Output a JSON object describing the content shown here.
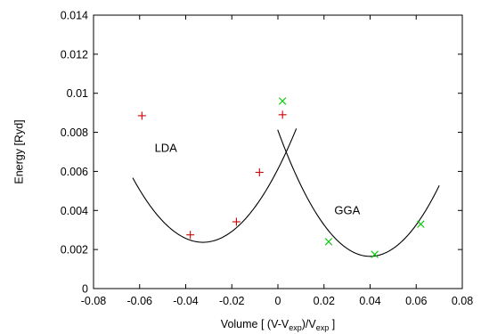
{
  "chart_data": {
    "type": "scatter",
    "xlabel": {
      "prefix": "Volume [  (V-V",
      "sub1": "exp",
      "mid": ")/V",
      "sub2": "exp",
      "suffix": "  ]"
    },
    "ylabel": "Energy [Ryd]",
    "xlim": [
      -0.08,
      0.08
    ],
    "ylim": [
      0,
      0.014
    ],
    "x_ticks": [
      "-0.08",
      "-0.06",
      "-0.04",
      "-0.02",
      "0",
      "0.02",
      "0.04",
      "0.06",
      "0.08"
    ],
    "y_ticks": [
      "0",
      "0.002",
      "0.004",
      "0.006",
      "0.008",
      "0.01",
      "0.012",
      "0.014"
    ],
    "grid": false,
    "legend": "none",
    "series": [
      {
        "name": "LDA",
        "marker": "+",
        "color": "#cc0000",
        "points": [
          {
            "x": -0.059,
            "y": 0.00885
          },
          {
            "x": -0.038,
            "y": 0.00275
          },
          {
            "x": -0.018,
            "y": 0.00342
          },
          {
            "x": -0.008,
            "y": 0.00595
          },
          {
            "x": 0.002,
            "y": 0.0089
          }
        ],
        "fit": {
          "x0": -0.0325,
          "e0": 0.00237,
          "a": 3.55,
          "x_from": -0.063,
          "x_to": 0.008
        }
      },
      {
        "name": "GGA",
        "marker": "x",
        "color": "#00cc00",
        "points": [
          {
            "x": 0.002,
            "y": 0.0096
          },
          {
            "x": 0.022,
            "y": 0.0024
          },
          {
            "x": 0.042,
            "y": 0.00175
          },
          {
            "x": 0.062,
            "y": 0.0033
          }
        ],
        "fit": {
          "x0": 0.04,
          "e0": 0.00165,
          "a": 4.03,
          "x_from": -0.0001,
          "x_to": 0.07
        }
      }
    ]
  }
}
